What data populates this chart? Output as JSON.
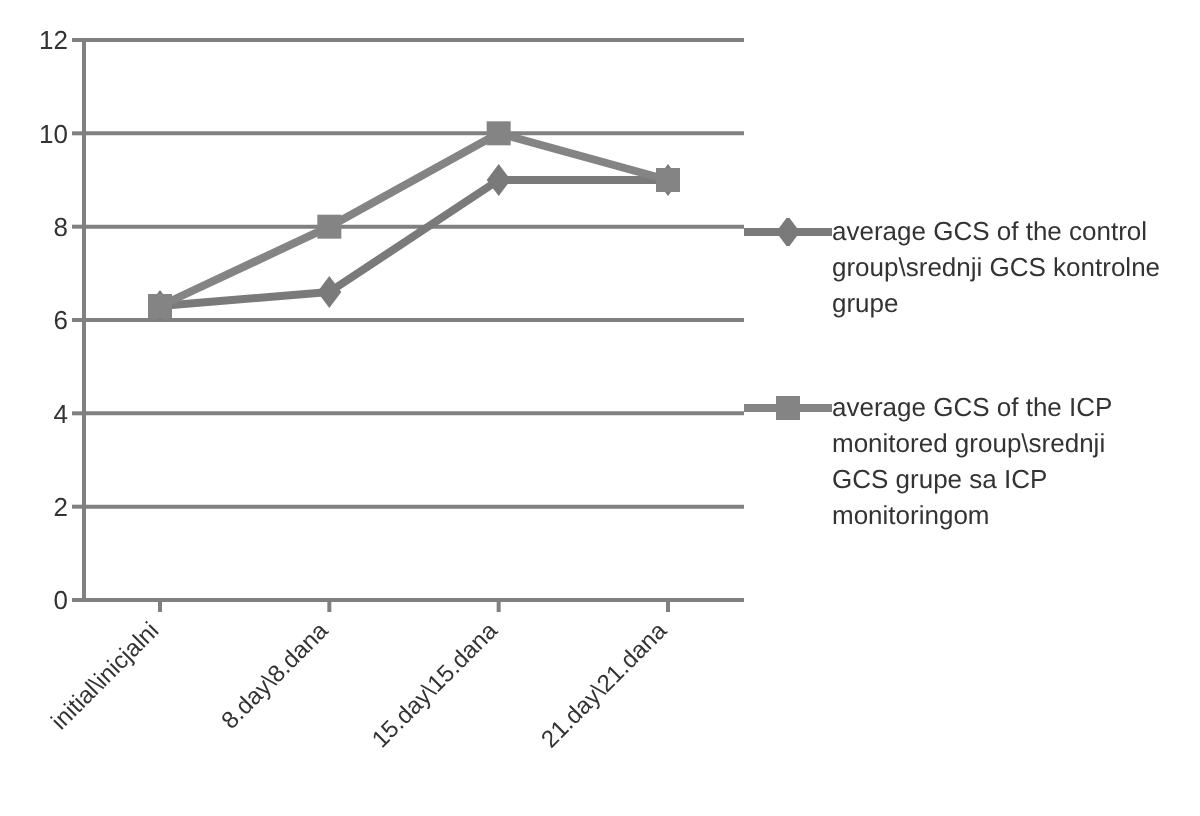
{
  "chart_data": {
    "type": "line",
    "categories": [
      "initial\\inicjalni",
      "8.day\\8.dana",
      "15.day\\15.dana",
      "21.day\\21.dana"
    ],
    "series": [
      {
        "name": "average GCS of the control group\\srednji GCS kontrolne grupe",
        "color": "#7a7a7a",
        "marker": "diamond",
        "values": [
          6.3,
          6.6,
          9,
          9
        ]
      },
      {
        "name": "average GCS of the ICP monitored group\\srednji GCS grupe sa ICP monitoringom",
        "color": "#848484",
        "marker": "square",
        "values": [
          6.3,
          8,
          10,
          9
        ]
      }
    ],
    "ylim": [
      0,
      12
    ],
    "yticks": [
      0,
      2,
      4,
      6,
      8,
      10,
      12
    ],
    "grid": "y",
    "legend": "right",
    "line_style": "solid"
  }
}
